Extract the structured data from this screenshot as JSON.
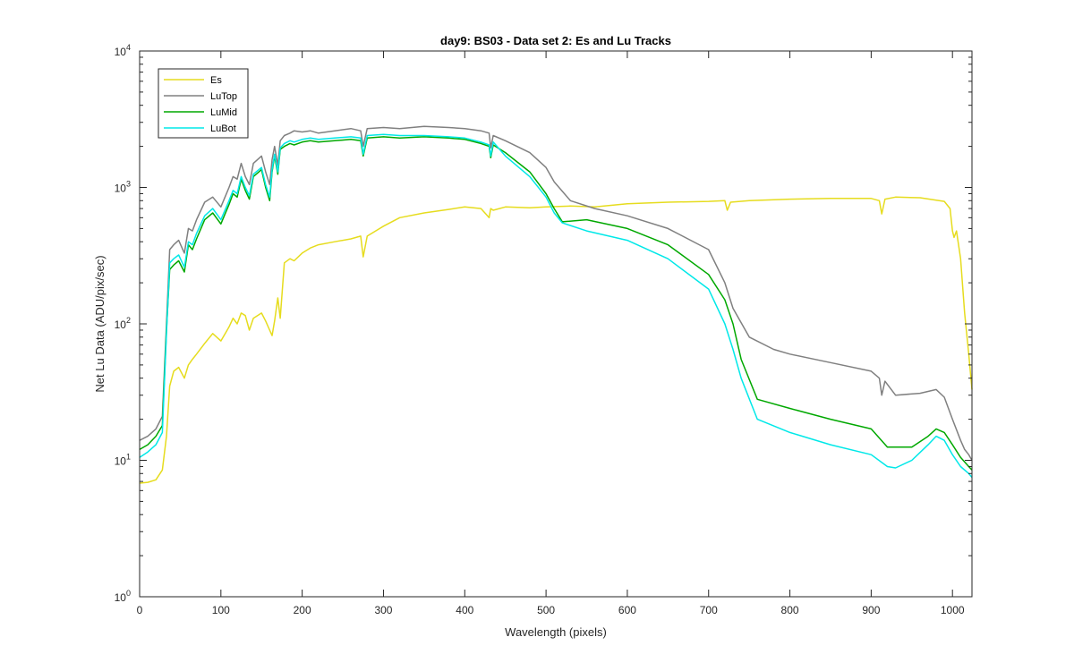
{
  "chart_data": {
    "type": "line",
    "title": "day9: BS03 - Data set 2: Es and Lu Tracks",
    "xlabel": "Wavelength (pixels)",
    "ylabel": "Net Lu Data (ADU/pix/sec)",
    "xlim": [
      0,
      1024
    ],
    "ylim": [
      1,
      10000
    ],
    "yscale": "log",
    "grid": false,
    "legend_position": "top-left",
    "x_ticks": [
      "0",
      "100",
      "200",
      "300",
      "400",
      "500",
      "600",
      "700",
      "800",
      "900",
      "1000"
    ],
    "y_ticks": [
      {
        "base": "10",
        "exp": "0"
      },
      {
        "base": "10",
        "exp": "1"
      },
      {
        "base": "10",
        "exp": "2"
      },
      {
        "base": "10",
        "exp": "3"
      },
      {
        "base": "10",
        "exp": "4"
      }
    ],
    "series": [
      {
        "name": "Es",
        "color": "#e6dc1e",
        "x": [
          0,
          10,
          20,
          28,
          33,
          37,
          42,
          48,
          55,
          60,
          65,
          70,
          80,
          90,
          100,
          110,
          115,
          120,
          125,
          130,
          135,
          140,
          150,
          155,
          160,
          163,
          166,
          170,
          173,
          178,
          185,
          190,
          200,
          210,
          220,
          240,
          260,
          272,
          275,
          280,
          300,
          320,
          350,
          380,
          400,
          420,
          430,
          432,
          435,
          450,
          480,
          500,
          530,
          560,
          600,
          650,
          700,
          720,
          723,
          727,
          750,
          800,
          850,
          900,
          910,
          913,
          917,
          930,
          960,
          990,
          997,
          1000,
          1002,
          1005,
          1010,
          1015,
          1020,
          1024
        ],
        "values": [
          6.8,
          6.9,
          7.2,
          8.5,
          15,
          35,
          45,
          48,
          40,
          50,
          55,
          60,
          72,
          85,
          75,
          95,
          110,
          100,
          120,
          115,
          90,
          110,
          120,
          105,
          90,
          82,
          105,
          155,
          110,
          280,
          300,
          290,
          330,
          360,
          380,
          400,
          420,
          440,
          310,
          440,
          520,
          600,
          650,
          690,
          720,
          700,
          600,
          700,
          680,
          720,
          710,
          720,
          730,
          720,
          760,
          780,
          790,
          800,
          680,
          780,
          800,
          820,
          830,
          830,
          800,
          640,
          820,
          850,
          840,
          790,
          700,
          480,
          430,
          480,
          300,
          120,
          60,
          33
        ]
      },
      {
        "name": "LuTop",
        "color": "#808080",
        "x": [
          0,
          10,
          20,
          28,
          33,
          37,
          42,
          48,
          55,
          60,
          65,
          70,
          80,
          90,
          100,
          110,
          115,
          120,
          125,
          130,
          135,
          140,
          150,
          155,
          160,
          163,
          166,
          170,
          173,
          178,
          185,
          190,
          200,
          210,
          220,
          240,
          260,
          272,
          275,
          280,
          300,
          320,
          350,
          380,
          400,
          420,
          430,
          432,
          435,
          450,
          480,
          500,
          510,
          530,
          560,
          600,
          650,
          700,
          720,
          730,
          750,
          780,
          800,
          850,
          900,
          910,
          913,
          917,
          930,
          960,
          980,
          990,
          1000,
          1010,
          1015,
          1020,
          1024
        ],
        "values": [
          14,
          15,
          17,
          21,
          100,
          350,
          380,
          410,
          330,
          500,
          480,
          580,
          780,
          850,
          720,
          1000,
          1200,
          1150,
          1500,
          1200,
          1050,
          1500,
          1700,
          1300,
          1050,
          1600,
          2000,
          1450,
          2200,
          2400,
          2500,
          2600,
          2550,
          2600,
          2500,
          2600,
          2700,
          2600,
          2000,
          2700,
          2750,
          2700,
          2800,
          2750,
          2700,
          2600,
          2500,
          1950,
          2400,
          2200,
          1800,
          1400,
          1100,
          800,
          700,
          620,
          500,
          350,
          200,
          130,
          80,
          65,
          60,
          52,
          45,
          40,
          30,
          38,
          30,
          31,
          33,
          29,
          20,
          14,
          12,
          11,
          10
        ]
      },
      {
        "name": "LuMid",
        "color": "#00a800",
        "x": [
          0,
          10,
          20,
          28,
          33,
          37,
          42,
          48,
          55,
          60,
          65,
          70,
          80,
          90,
          100,
          110,
          115,
          120,
          125,
          130,
          135,
          140,
          150,
          155,
          160,
          163,
          166,
          170,
          173,
          178,
          185,
          190,
          200,
          210,
          220,
          240,
          260,
          272,
          275,
          280,
          300,
          320,
          350,
          380,
          400,
          420,
          430,
          432,
          435,
          450,
          480,
          500,
          510,
          520,
          550,
          600,
          650,
          700,
          720,
          730,
          740,
          760,
          800,
          850,
          900,
          920,
          950,
          970,
          980,
          990,
          1000,
          1010,
          1020,
          1024
        ],
        "values": [
          12,
          13,
          15,
          18,
          90,
          250,
          270,
          290,
          240,
          380,
          350,
          420,
          580,
          650,
          540,
          750,
          900,
          850,
          1150,
          950,
          820,
          1200,
          1350,
          1000,
          800,
          1300,
          1700,
          1250,
          1900,
          2000,
          2100,
          2050,
          2150,
          2200,
          2150,
          2200,
          2250,
          2200,
          1700,
          2300,
          2350,
          2300,
          2350,
          2300,
          2250,
          2100,
          2000,
          1650,
          2050,
          1800,
          1300,
          900,
          700,
          560,
          580,
          500,
          380,
          230,
          150,
          100,
          55,
          28,
          24,
          20,
          17,
          12.5,
          12.5,
          15,
          17,
          16,
          13,
          10.5,
          9,
          8.5
        ]
      },
      {
        "name": "LuBot",
        "color": "#00e8e8",
        "x": [
          0,
          10,
          20,
          28,
          33,
          37,
          42,
          48,
          55,
          60,
          65,
          70,
          80,
          90,
          100,
          110,
          115,
          120,
          125,
          130,
          135,
          140,
          150,
          155,
          160,
          163,
          166,
          170,
          173,
          178,
          185,
          190,
          200,
          210,
          220,
          240,
          260,
          272,
          275,
          280,
          300,
          320,
          350,
          380,
          400,
          420,
          430,
          432,
          435,
          450,
          480,
          500,
          510,
          520,
          550,
          600,
          650,
          700,
          720,
          730,
          740,
          760,
          800,
          850,
          900,
          920,
          930,
          950,
          970,
          980,
          990,
          1000,
          1010,
          1020,
          1024
        ],
        "values": [
          10.5,
          11.5,
          13,
          16,
          85,
          280,
          300,
          320,
          260,
          400,
          380,
          460,
          620,
          700,
          580,
          800,
          950,
          900,
          1200,
          1000,
          870,
          1250,
          1400,
          1050,
          850,
          1350,
          1750,
          1300,
          1950,
          2100,
          2200,
          2150,
          2250,
          2300,
          2250,
          2300,
          2350,
          2300,
          1750,
          2400,
          2450,
          2400,
          2400,
          2350,
          2300,
          2150,
          2050,
          1700,
          2150,
          1700,
          1200,
          850,
          650,
          550,
          480,
          410,
          300,
          180,
          100,
          65,
          40,
          20,
          16,
          13,
          11,
          9,
          8.8,
          10,
          13,
          15,
          14,
          11,
          9,
          8,
          7.5
        ]
      }
    ]
  }
}
